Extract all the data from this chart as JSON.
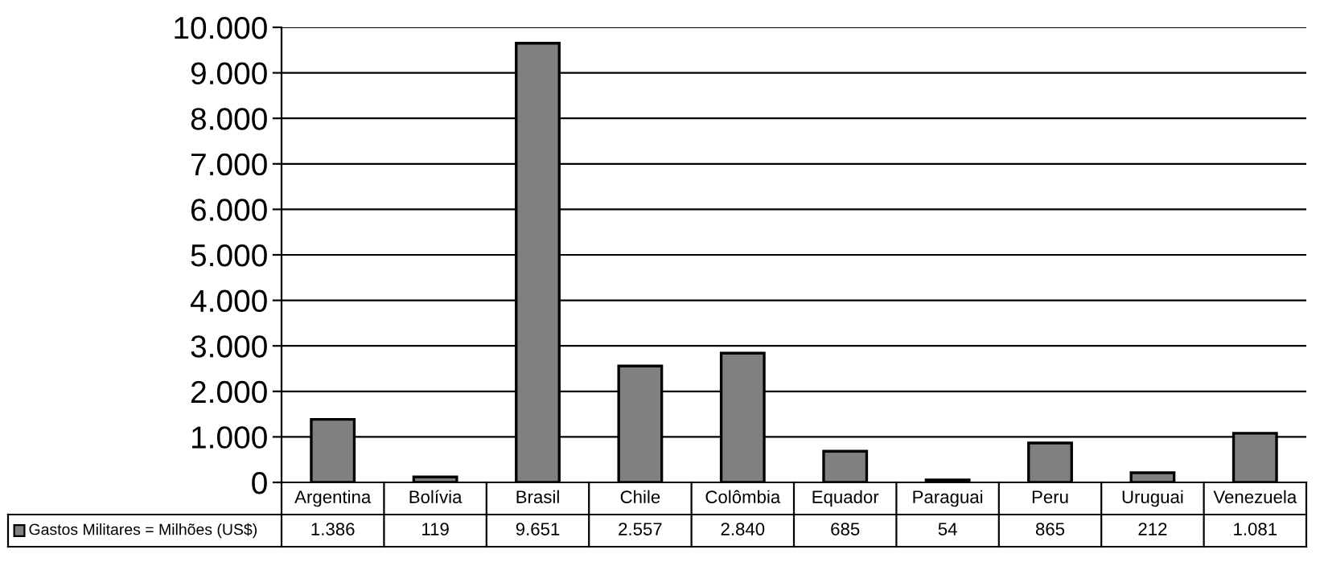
{
  "chart_data": {
    "type": "bar",
    "categories": [
      "Argentina",
      "Bolívia",
      "Brasil",
      "Chile",
      "Colômbia",
      "Equador",
      "Paraguai",
      "Peru",
      "Uruguai",
      "Venezuela"
    ],
    "series": [
      {
        "name": "Gastos Militares = Milhões (US$)",
        "color": "#808080",
        "values": [
          1386,
          119,
          9651,
          2557,
          2840,
          685,
          54,
          865,
          212,
          1081
        ],
        "value_labels": [
          "1.386",
          "119",
          "9.651",
          "2.557",
          "2.840",
          "685",
          "54",
          "865",
          "212",
          "1.081"
        ]
      }
    ],
    "ylim": [
      0,
      10000
    ],
    "yticks": [
      {
        "value": 0,
        "label": "0"
      },
      {
        "value": 1000,
        "label": "1.000"
      },
      {
        "value": 2000,
        "label": "2.000"
      },
      {
        "value": 3000,
        "label": "3.000"
      },
      {
        "value": 4000,
        "label": "4.000"
      },
      {
        "value": 5000,
        "label": "5.000"
      },
      {
        "value": 6000,
        "label": "6.000"
      },
      {
        "value": 7000,
        "label": "7.000"
      },
      {
        "value": 8000,
        "label": "8.000"
      },
      {
        "value": 9000,
        "label": "9.000"
      },
      {
        "value": 10000,
        "label": "10.000"
      }
    ],
    "grid": "y",
    "legend": "bottom left",
    "data_labels": true
  }
}
